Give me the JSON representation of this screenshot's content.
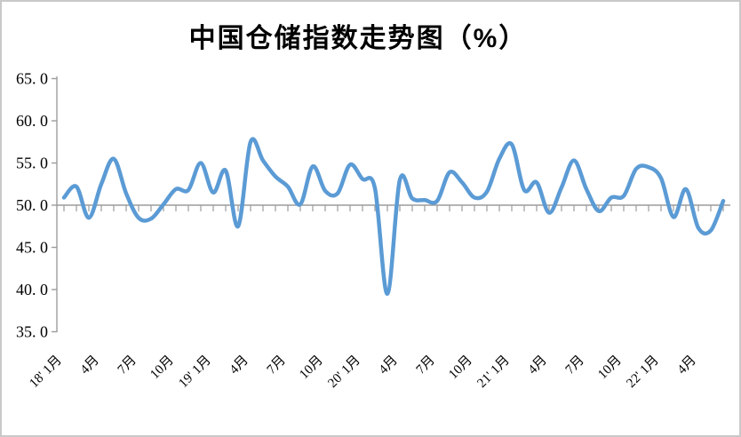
{
  "chart_data": {
    "type": "line",
    "title": "中国仓储指数走势图（%）",
    "xlabel": "",
    "ylabel": "",
    "ylim": [
      35.0,
      65.0
    ],
    "ytick_step": 5.0,
    "y_tick_labels": [
      "65. 0",
      "60. 0",
      "55. 0",
      "50. 0",
      "45. 0",
      "40. 0",
      "35. 0"
    ],
    "y_tick_values": [
      65,
      60,
      55,
      50,
      45,
      40,
      35
    ],
    "axis_cross_y": 50.0,
    "grid": false,
    "legend": "none",
    "smoothed_line": true,
    "line_color": "#5B9BD5",
    "axis_color": "#9c9c9c",
    "text_color": "#000000",
    "x_tick_label_every": 3,
    "x_tick_labels": [
      "18' 1月",
      "4月",
      "7月",
      "10月",
      "19' 1月",
      "4月",
      "7月",
      "10月",
      "20' 1月",
      "4月",
      "7月",
      "10月",
      "21' 1月",
      "4月",
      "7月",
      "10月",
      "22' 1月",
      "4月"
    ],
    "categories": [
      "2018-01",
      "2018-02",
      "2018-03",
      "2018-04",
      "2018-05",
      "2018-06",
      "2018-07",
      "2018-08",
      "2018-09",
      "2018-10",
      "2018-11",
      "2018-12",
      "2019-01",
      "2019-02",
      "2019-03",
      "2019-04",
      "2019-05",
      "2019-06",
      "2019-07",
      "2019-08",
      "2019-09",
      "2019-10",
      "2019-11",
      "2019-12",
      "2020-01",
      "2020-02",
      "2020-03",
      "2020-04",
      "2020-05",
      "2020-06",
      "2020-07",
      "2020-08",
      "2020-09",
      "2020-10",
      "2020-11",
      "2020-12",
      "2021-01",
      "2021-02",
      "2021-03",
      "2021-04",
      "2021-05",
      "2021-06",
      "2021-07",
      "2021-08",
      "2021-09",
      "2021-10",
      "2021-11",
      "2021-12",
      "2022-01",
      "2022-02",
      "2022-03",
      "2022-04",
      "2022-05",
      "2022-06"
    ],
    "series": [
      {
        "name": "中国仓储指数",
        "values": [
          50.9,
          52.2,
          48.5,
          52.5,
          55.5,
          51.4,
          48.5,
          48.4,
          50.1,
          51.9,
          51.8,
          55.0,
          51.5,
          54.1,
          47.5,
          57.5,
          55.3,
          53.4,
          52.2,
          50.1,
          54.6,
          51.7,
          51.4,
          54.8,
          53.1,
          52.0,
          39.5,
          53.0,
          50.8,
          50.6,
          50.5,
          53.9,
          52.7,
          50.9,
          51.6,
          55.5,
          57.2,
          51.8,
          52.7,
          49.1,
          52.1,
          55.3,
          51.9,
          49.3,
          50.9,
          51.1,
          54.3,
          54.5,
          53.2,
          48.6,
          51.9,
          47.3,
          47.0,
          50.5
        ]
      }
    ]
  }
}
